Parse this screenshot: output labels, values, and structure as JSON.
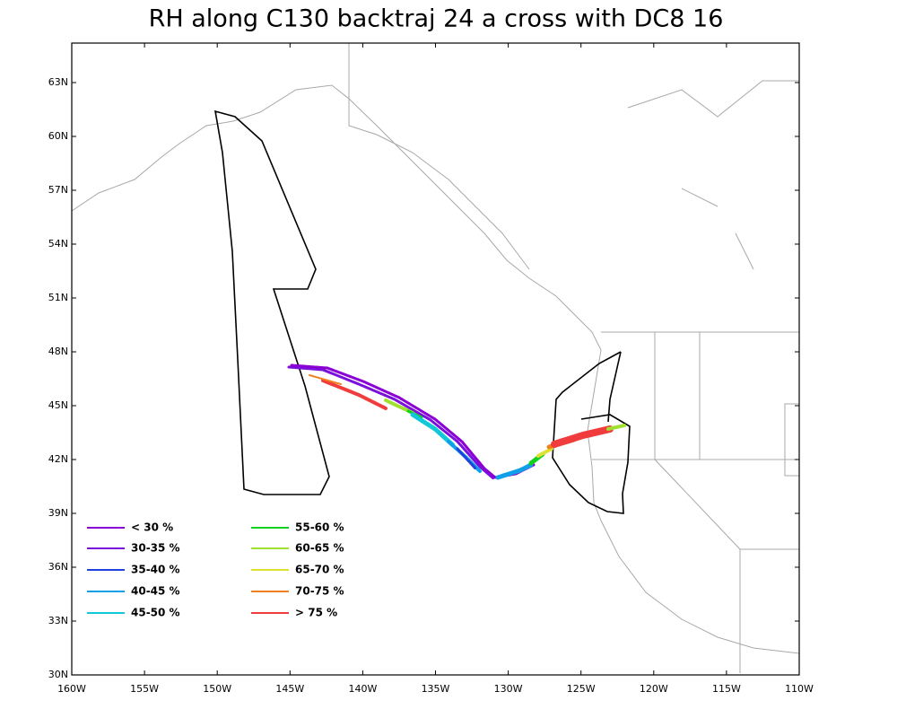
{
  "title": "RH along C130 backtraj 24 a cross with DC8 16",
  "map": {
    "lonlim": [
      -160,
      -110
    ],
    "latlim": [
      30,
      65.2
    ],
    "lat_ticks": [
      {
        "value": 30,
        "label": "30N"
      },
      {
        "value": 33,
        "label": "33N"
      },
      {
        "value": 36,
        "label": "36N"
      },
      {
        "value": 39,
        "label": "39N"
      },
      {
        "value": 42,
        "label": "42N"
      },
      {
        "value": 45,
        "label": "45N"
      },
      {
        "value": 48,
        "label": "48N"
      },
      {
        "value": 51,
        "label": "51N"
      },
      {
        "value": 54,
        "label": "54N"
      },
      {
        "value": 57,
        "label": "57N"
      },
      {
        "value": 60,
        "label": "60N"
      },
      {
        "value": 63,
        "label": "63N"
      }
    ],
    "lon_ticks": [
      {
        "value": -160,
        "label": "160W"
      },
      {
        "value": -155,
        "label": "155W"
      },
      {
        "value": -150,
        "label": "150W"
      },
      {
        "value": -145,
        "label": "145W"
      },
      {
        "value": -140,
        "label": "140W"
      },
      {
        "value": -135,
        "label": "135W"
      },
      {
        "value": -130,
        "label": "130W"
      },
      {
        "value": -125,
        "label": "125W"
      },
      {
        "value": -120,
        "label": "120W"
      },
      {
        "value": -115,
        "label": "115W"
      },
      {
        "value": -110,
        "label": "110W"
      }
    ]
  },
  "legend": [
    {
      "label": "< 30 %",
      "color": "#8a00d4"
    },
    {
      "label": "30-35 %",
      "color": "#7a10dc"
    },
    {
      "label": "35-40 %",
      "color": "#2040e0"
    },
    {
      "label": "40-45 %",
      "color": "#10a0e8"
    },
    {
      "label": "45-50 %",
      "color": "#10c8d8"
    },
    {
      "label": "55-60 %",
      "color": "#10d020"
    },
    {
      "label": "60-65 %",
      "color": "#a0e030"
    },
    {
      "label": "65-70 %",
      "color": "#e0e030"
    },
    {
      "label": "70-75 %",
      "color": "#f08020"
    },
    {
      "label": "> 75 %",
      "color": "#f03c3c"
    }
  ]
}
